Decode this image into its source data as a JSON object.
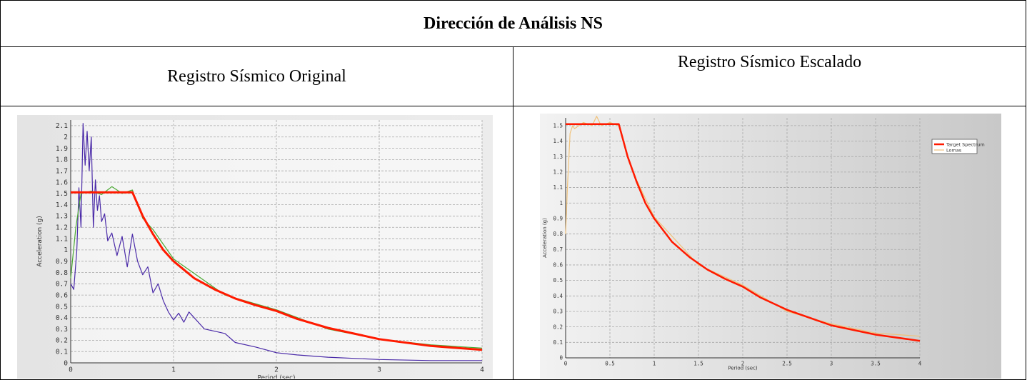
{
  "table": {
    "title": "Dirección de Análisis NS",
    "left_heading": "Registro Sísmico Original",
    "right_heading": "Registro Sísmico Escalado"
  },
  "chart_data": [
    {
      "type": "line",
      "xlabel": "Period (sec)",
      "ylabel": "Acceleration (g)",
      "xlim": [
        0,
        4
      ],
      "ylim": [
        0,
        2.15
      ],
      "xticks": [
        0,
        1,
        2,
        3,
        4
      ],
      "yticks": [
        0,
        0.1,
        0.2,
        0.3,
        0.4,
        0.5,
        0.6,
        0.7,
        0.8,
        0.9,
        1,
        1.1,
        1.2,
        1.3,
        1.4,
        1.5,
        1.6,
        1.7,
        1.8,
        1.9,
        2,
        2.1
      ],
      "grid": true,
      "series": [
        {
          "color": "#ff1a00",
          "x": [
            0,
            0.6,
            0.7,
            0.8,
            0.9,
            1.0,
            1.2,
            1.4,
            1.6,
            1.8,
            2.0,
            2.2,
            2.5,
            3.0,
            3.5,
            4.0
          ],
          "y": [
            1.51,
            1.51,
            1.3,
            1.14,
            1.0,
            0.9,
            0.75,
            0.65,
            0.57,
            0.51,
            0.46,
            0.39,
            0.31,
            0.21,
            0.15,
            0.115
          ]
        },
        {
          "color": "#4aa832",
          "x": [
            0,
            0.05,
            0.1,
            0.2,
            0.3,
            0.4,
            0.5,
            0.6,
            0.7,
            0.8,
            1.0,
            1.5,
            2.0,
            2.5,
            3.0,
            3.5,
            4.0
          ],
          "y": [
            0.75,
            1.2,
            1.5,
            1.52,
            1.49,
            1.56,
            1.5,
            1.53,
            1.28,
            1.18,
            0.92,
            0.6,
            0.47,
            0.3,
            0.21,
            0.16,
            0.13
          ]
        },
        {
          "color": "#4a2aa8",
          "x": [
            0,
            0.03,
            0.06,
            0.08,
            0.1,
            0.12,
            0.14,
            0.16,
            0.18,
            0.2,
            0.22,
            0.24,
            0.26,
            0.28,
            0.3,
            0.33,
            0.36,
            0.4,
            0.45,
            0.5,
            0.55,
            0.6,
            0.65,
            0.7,
            0.75,
            0.8,
            0.85,
            0.9,
            0.95,
            1.0,
            1.05,
            1.1,
            1.15,
            1.2,
            1.3,
            1.4,
            1.5,
            1.6,
            1.8,
            2.0,
            2.2,
            2.5,
            3.0,
            3.5,
            4.0
          ],
          "y": [
            0.7,
            0.65,
            1.0,
            1.55,
            1.2,
            2.12,
            1.75,
            2.05,
            1.7,
            2.0,
            1.2,
            1.62,
            1.35,
            1.48,
            1.25,
            1.32,
            1.08,
            1.15,
            0.95,
            1.12,
            0.85,
            1.14,
            0.9,
            0.78,
            0.85,
            0.62,
            0.7,
            0.55,
            0.45,
            0.38,
            0.44,
            0.36,
            0.45,
            0.4,
            0.3,
            0.28,
            0.26,
            0.18,
            0.14,
            0.09,
            0.07,
            0.05,
            0.03,
            0.02,
            0.02
          ]
        }
      ]
    },
    {
      "type": "line",
      "xlabel": "Period (sec)",
      "ylabel": "Acceleration (g)",
      "xlim": [
        0,
        4
      ],
      "ylim": [
        0,
        1.55
      ],
      "xticks": [
        0,
        0.5,
        1,
        1.5,
        2,
        2.5,
        3,
        3.5,
        4
      ],
      "yticks": [
        0,
        0.1,
        0.2,
        0.3,
        0.4,
        0.5,
        0.6,
        0.7,
        0.8,
        0.9,
        1,
        1.1,
        1.2,
        1.3,
        1.4,
        1.5
      ],
      "grid": true,
      "legend": "right",
      "series": [
        {
          "name": "Target Spectrum",
          "color": "#ff1a00",
          "x": [
            0,
            0.6,
            0.7,
            0.8,
            0.9,
            1.0,
            1.2,
            1.4,
            1.6,
            1.8,
            2.0,
            2.2,
            2.5,
            3.0,
            3.5,
            4.0
          ],
          "y": [
            1.51,
            1.51,
            1.3,
            1.14,
            1.0,
            0.9,
            0.75,
            0.65,
            0.57,
            0.51,
            0.46,
            0.39,
            0.31,
            0.21,
            0.15,
            0.11
          ]
        },
        {
          "name": "Lomas",
          "color": "#f0c27a",
          "x": [
            0,
            0.02,
            0.05,
            0.08,
            0.1,
            0.2,
            0.3,
            0.35,
            0.4,
            0.5,
            0.6,
            0.7,
            0.8,
            1.0,
            1.5,
            2.0,
            2.5,
            3.0,
            3.5,
            4.0
          ],
          "y": [
            0.8,
            1.1,
            1.45,
            1.5,
            1.48,
            1.52,
            1.5,
            1.56,
            1.5,
            1.52,
            1.5,
            1.3,
            1.15,
            0.91,
            0.6,
            0.47,
            0.3,
            0.22,
            0.16,
            0.14
          ]
        }
      ]
    }
  ]
}
